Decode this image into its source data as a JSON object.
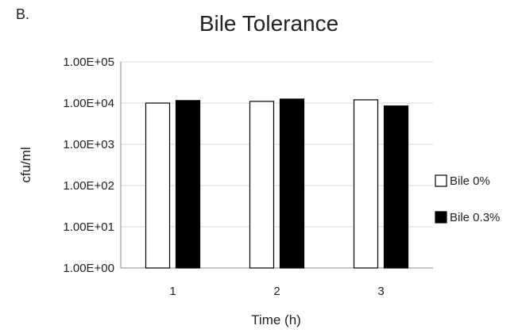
{
  "panel_label": "B.",
  "chart_data": {
    "type": "bar",
    "title": "Bile Tolerance",
    "xlabel": "Time (h)",
    "ylabel": "cfu/ml",
    "yscale": "log",
    "ylim": [
      1,
      100000
    ],
    "yticks": [
      "1.00E+00",
      "1.00E+01",
      "1.00E+02",
      "1.00E+03",
      "1.00E+04",
      "1.00E+05"
    ],
    "categories": [
      "1",
      "2",
      "3"
    ],
    "grid": true,
    "legend_position": "right",
    "series": [
      {
        "name": "Bile 0%",
        "color": "#ffffff",
        "values": [
          10000,
          11000,
          12000
        ]
      },
      {
        "name": "Bile 0.3%",
        "color": "#000000",
        "values": [
          11500,
          12500,
          8500
        ]
      }
    ]
  }
}
